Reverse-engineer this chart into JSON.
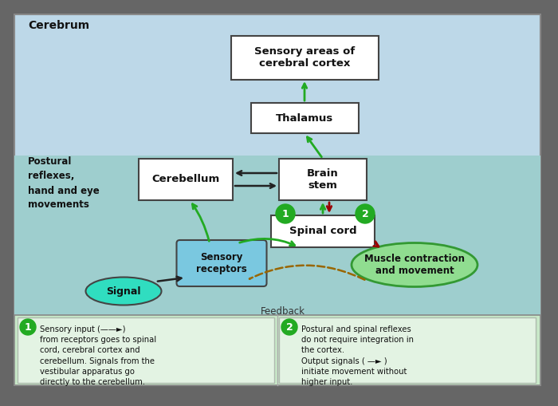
{
  "bg_outer": "#bdd8e8",
  "bg_lower_band": "#9ecece",
  "bg_bottom": "#c8e8c8",
  "box_fill": "#ffffff",
  "box_edge": "#444444",
  "sensory_rect_fill": "#7ac8e0",
  "muscle_ellipse_fill": "#90dd90",
  "muscle_ellipse_edge": "#339933",
  "signal_ellipse_fill": "#30ddc0",
  "signal_ellipse_edge": "#444444",
  "numbered_circle_fill": "#22aa22",
  "text_color": "#111111",
  "arrow_green": "#22aa22",
  "arrow_dark_red": "#990000",
  "arrow_brown_dashed": "#996600",
  "arrow_black": "#222222",
  "title_cerebrum": "Cerebrum",
  "label_sensory_cortex": "Sensory areas of\ncerebral cortex",
  "label_thalamus": "Thalamus",
  "label_brainstem": "Brain\nstem",
  "label_cerebellum": "Cerebellum",
  "label_spinal_cord": "Spinal cord",
  "label_sensory_receptors": "Sensory\nreceptors",
  "label_muscle": "Muscle contraction\nand movement",
  "label_signal": "Signal",
  "label_feedback": "Feedback",
  "label_postural": "Postural\nreflexes,\nhand and eye\nmovements",
  "legend1_text": "Sensory input (——►)\nfrom receptors goes to spinal\ncord, cerebral cortex and\ncerebellum. Signals from the\nvestibular apparatus go\ndirectly to the cerebellum.",
  "legend2_text": "Postural and spinal reflexes\ndo not require integration in\nthe cortex.\nOutput signals ( —► )\ninitiate movement without\nhigher input."
}
